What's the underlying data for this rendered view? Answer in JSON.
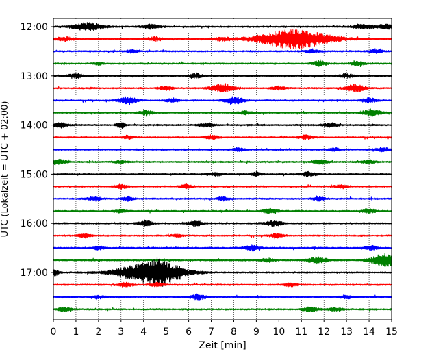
{
  "chart_data": {
    "type": "line",
    "title": "",
    "xlabel": "Zeit  [min]",
    "ylabel": "UTC (Lokalzeit = UTC + 02:00)",
    "xlim": [
      0,
      15
    ],
    "x_ticks": [
      "0",
      "1",
      "2",
      "3",
      "4",
      "5",
      "6",
      "7",
      "8",
      "9",
      "10",
      "11",
      "12",
      "13",
      "14",
      "15"
    ],
    "y_ticks": [
      "12:00",
      "13:00",
      "14:00",
      "15:00",
      "16:00",
      "17:00"
    ],
    "grid": "vertical dotted at each minute",
    "legend": "none",
    "colors": [
      "#000000",
      "#ff0000",
      "#0000ff",
      "#008000"
    ],
    "series": [
      {
        "start": "12:00",
        "color": "#000000",
        "bursts": [
          [
            1.5,
            0.9,
            0.7
          ],
          [
            4.3,
            0.5,
            0.4
          ],
          [
            13.8,
            0.5,
            0.5
          ],
          [
            14.8,
            0.5,
            0.4
          ]
        ]
      },
      {
        "start": "12:15",
        "color": "#ff0000",
        "bursts": [
          [
            10.7,
            2.3,
            1.6
          ],
          [
            0.5,
            0.5,
            0.4
          ],
          [
            4.5,
            0.5,
            0.3
          ],
          [
            7.5,
            0.4,
            0.35
          ]
        ]
      },
      {
        "start": "12:30",
        "color": "#0000ff",
        "bursts": [
          [
            14.3,
            0.5,
            0.3
          ],
          [
            11.5,
            0.4,
            0.3
          ],
          [
            3.5,
            0.4,
            0.25
          ]
        ]
      },
      {
        "start": "12:45",
        "color": "#008000",
        "bursts": [
          [
            11.8,
            0.6,
            0.3
          ],
          [
            13.5,
            0.5,
            0.3
          ],
          [
            2.0,
            0.3,
            0.2
          ]
        ]
      },
      {
        "start": "13:00",
        "color": "#000000",
        "bursts": [
          [
            1.0,
            0.7,
            0.3
          ],
          [
            6.3,
            0.6,
            0.3
          ],
          [
            13.0,
            0.5,
            0.3
          ]
        ]
      },
      {
        "start": "13:15",
        "color": "#ff0000",
        "bursts": [
          [
            7.5,
            1.0,
            0.5
          ],
          [
            13.4,
            0.9,
            0.4
          ],
          [
            5.0,
            0.5,
            0.3
          ],
          [
            10.0,
            0.4,
            0.3
          ]
        ]
      },
      {
        "start": "13:30",
        "color": "#0000ff",
        "bursts": [
          [
            3.3,
            0.9,
            0.4
          ],
          [
            8.0,
            0.9,
            0.4
          ],
          [
            5.3,
            0.5,
            0.3
          ],
          [
            14.0,
            0.6,
            0.3
          ]
        ]
      },
      {
        "start": "13:45",
        "color": "#008000",
        "bursts": [
          [
            4.1,
            0.5,
            0.3
          ],
          [
            14.1,
            0.8,
            0.4
          ],
          [
            8.5,
            0.4,
            0.3
          ]
        ]
      },
      {
        "start": "14:00",
        "color": "#000000",
        "bursts": [
          [
            0.3,
            0.6,
            0.3
          ],
          [
            3.0,
            0.7,
            0.2
          ],
          [
            6.8,
            0.5,
            0.3
          ],
          [
            12.3,
            0.5,
            0.3
          ]
        ]
      },
      {
        "start": "14:15",
        "color": "#ff0000",
        "bursts": [
          [
            7.0,
            0.5,
            0.3
          ],
          [
            11.2,
            0.5,
            0.3
          ],
          [
            3.3,
            0.4,
            0.25
          ]
        ]
      },
      {
        "start": "14:30",
        "color": "#0000ff",
        "bursts": [
          [
            14.6,
            0.5,
            0.3
          ],
          [
            8.2,
            0.4,
            0.25
          ],
          [
            12.5,
            0.4,
            0.25
          ]
        ]
      },
      {
        "start": "14:45",
        "color": "#008000",
        "bursts": [
          [
            0.2,
            0.6,
            0.35
          ],
          [
            11.8,
            0.5,
            0.35
          ],
          [
            14.0,
            0.4,
            0.3
          ],
          [
            3.0,
            0.3,
            0.3
          ]
        ]
      },
      {
        "start": "15:00",
        "color": "#000000",
        "bursts": [
          [
            11.3,
            0.5,
            0.3
          ],
          [
            9.0,
            0.5,
            0.2
          ],
          [
            7.2,
            0.4,
            0.3
          ]
        ]
      },
      {
        "start": "15:15",
        "color": "#ff0000",
        "bursts": [
          [
            3.0,
            0.5,
            0.3
          ],
          [
            5.9,
            0.5,
            0.25
          ],
          [
            12.8,
            0.4,
            0.3
          ]
        ]
      },
      {
        "start": "15:30",
        "color": "#0000ff",
        "bursts": [
          [
            1.8,
            0.5,
            0.3
          ],
          [
            3.3,
            0.5,
            0.25
          ],
          [
            11.8,
            0.5,
            0.25
          ],
          [
            7.5,
            0.4,
            0.25
          ]
        ]
      },
      {
        "start": "15:45",
        "color": "#008000",
        "bursts": [
          [
            9.6,
            0.5,
            0.35
          ],
          [
            14.0,
            0.5,
            0.3
          ],
          [
            3.0,
            0.4,
            0.3
          ]
        ]
      },
      {
        "start": "16:00",
        "color": "#000000",
        "bursts": [
          [
            4.1,
            0.6,
            0.3
          ],
          [
            6.3,
            0.6,
            0.3
          ],
          [
            9.8,
            0.7,
            0.35
          ]
        ]
      },
      {
        "start": "16:15",
        "color": "#ff0000",
        "bursts": [
          [
            1.4,
            0.5,
            0.3
          ],
          [
            9.9,
            0.5,
            0.3
          ],
          [
            5.5,
            0.3,
            0.25
          ]
        ]
      },
      {
        "start": "16:30",
        "color": "#0000ff",
        "bursts": [
          [
            8.8,
            0.6,
            0.35
          ],
          [
            14.1,
            0.5,
            0.3
          ],
          [
            2.0,
            0.4,
            0.25
          ]
        ]
      },
      {
        "start": "16:45",
        "color": "#008000",
        "bursts": [
          [
            14.7,
            1.5,
            0.6
          ],
          [
            11.7,
            0.8,
            0.4
          ],
          [
            9.5,
            0.4,
            0.3
          ]
        ]
      },
      {
        "start": "17:00",
        "color": "#000000",
        "bursts": [
          [
            4.3,
            2.3,
            1.4
          ],
          [
            4.7,
            1.5,
            0.4
          ],
          [
            0.0,
            1.0,
            0.2
          ],
          [
            5.5,
            0.6,
            0.3
          ]
        ]
      },
      {
        "start": "17:15",
        "color": "#ff0000",
        "bursts": [
          [
            3.2,
            0.5,
            0.3
          ],
          [
            4.6,
            0.5,
            0.3
          ],
          [
            10.5,
            0.4,
            0.3
          ]
        ]
      },
      {
        "start": "17:30",
        "color": "#0000ff",
        "bursts": [
          [
            6.4,
            0.6,
            0.35
          ],
          [
            2.0,
            0.4,
            0.25
          ],
          [
            13.0,
            0.4,
            0.3
          ]
        ]
      },
      {
        "start": "17:45",
        "color": "#008000",
        "bursts": [
          [
            0.5,
            0.5,
            0.3
          ],
          [
            11.4,
            0.5,
            0.35
          ],
          [
            12.5,
            0.4,
            0.3
          ]
        ]
      }
    ]
  }
}
